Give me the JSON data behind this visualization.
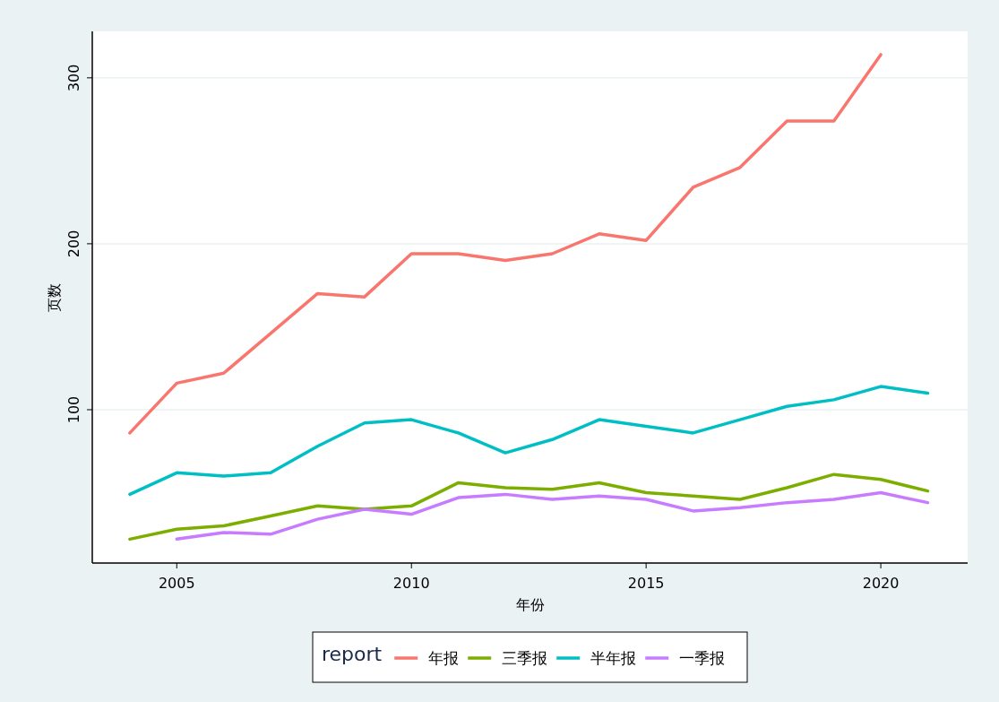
{
  "chart_data": {
    "type": "line",
    "xlabel": "年份",
    "ylabel": "页数",
    "legend_title": "report",
    "legend": "bottom",
    "grid": "y",
    "line_style": "solid",
    "marker": "none",
    "x": [
      2004,
      2005,
      2006,
      2007,
      2008,
      2009,
      2010,
      2011,
      2012,
      2013,
      2014,
      2015,
      2016,
      2017,
      2018,
      2019,
      2020,
      2021
    ],
    "xlim": [
      2003.2,
      2021.85
    ],
    "xticks": [
      2005,
      2010,
      2015,
      2020
    ],
    "ylim": [
      7.6,
      328
    ],
    "yticks": [
      100,
      200,
      300
    ],
    "series": [
      {
        "name": "年报",
        "color": "#f8766d",
        "values": [
          86,
          116,
          122,
          146,
          170,
          168,
          194,
          194,
          190,
          194,
          206,
          202,
          234,
          246,
          274,
          274,
          314,
          null
        ]
      },
      {
        "name": "三季报",
        "color": "#7cae00",
        "values": [
          22,
          28,
          30,
          36,
          42,
          40,
          42,
          56,
          53,
          52,
          56,
          50,
          48,
          46,
          53,
          61,
          58,
          51
        ]
      },
      {
        "name": "半年报",
        "color": "#00bfc4",
        "values": [
          49,
          62,
          60,
          62,
          78,
          92,
          94,
          86,
          74,
          82,
          94,
          90,
          86,
          94,
          102,
          106,
          114,
          110
        ]
      },
      {
        "name": "一季报",
        "color": "#c77cff",
        "values": [
          null,
          22,
          26,
          25,
          34,
          40,
          37,
          47,
          49,
          46,
          48,
          46,
          39,
          41,
          44,
          46,
          50,
          44
        ]
      }
    ]
  }
}
